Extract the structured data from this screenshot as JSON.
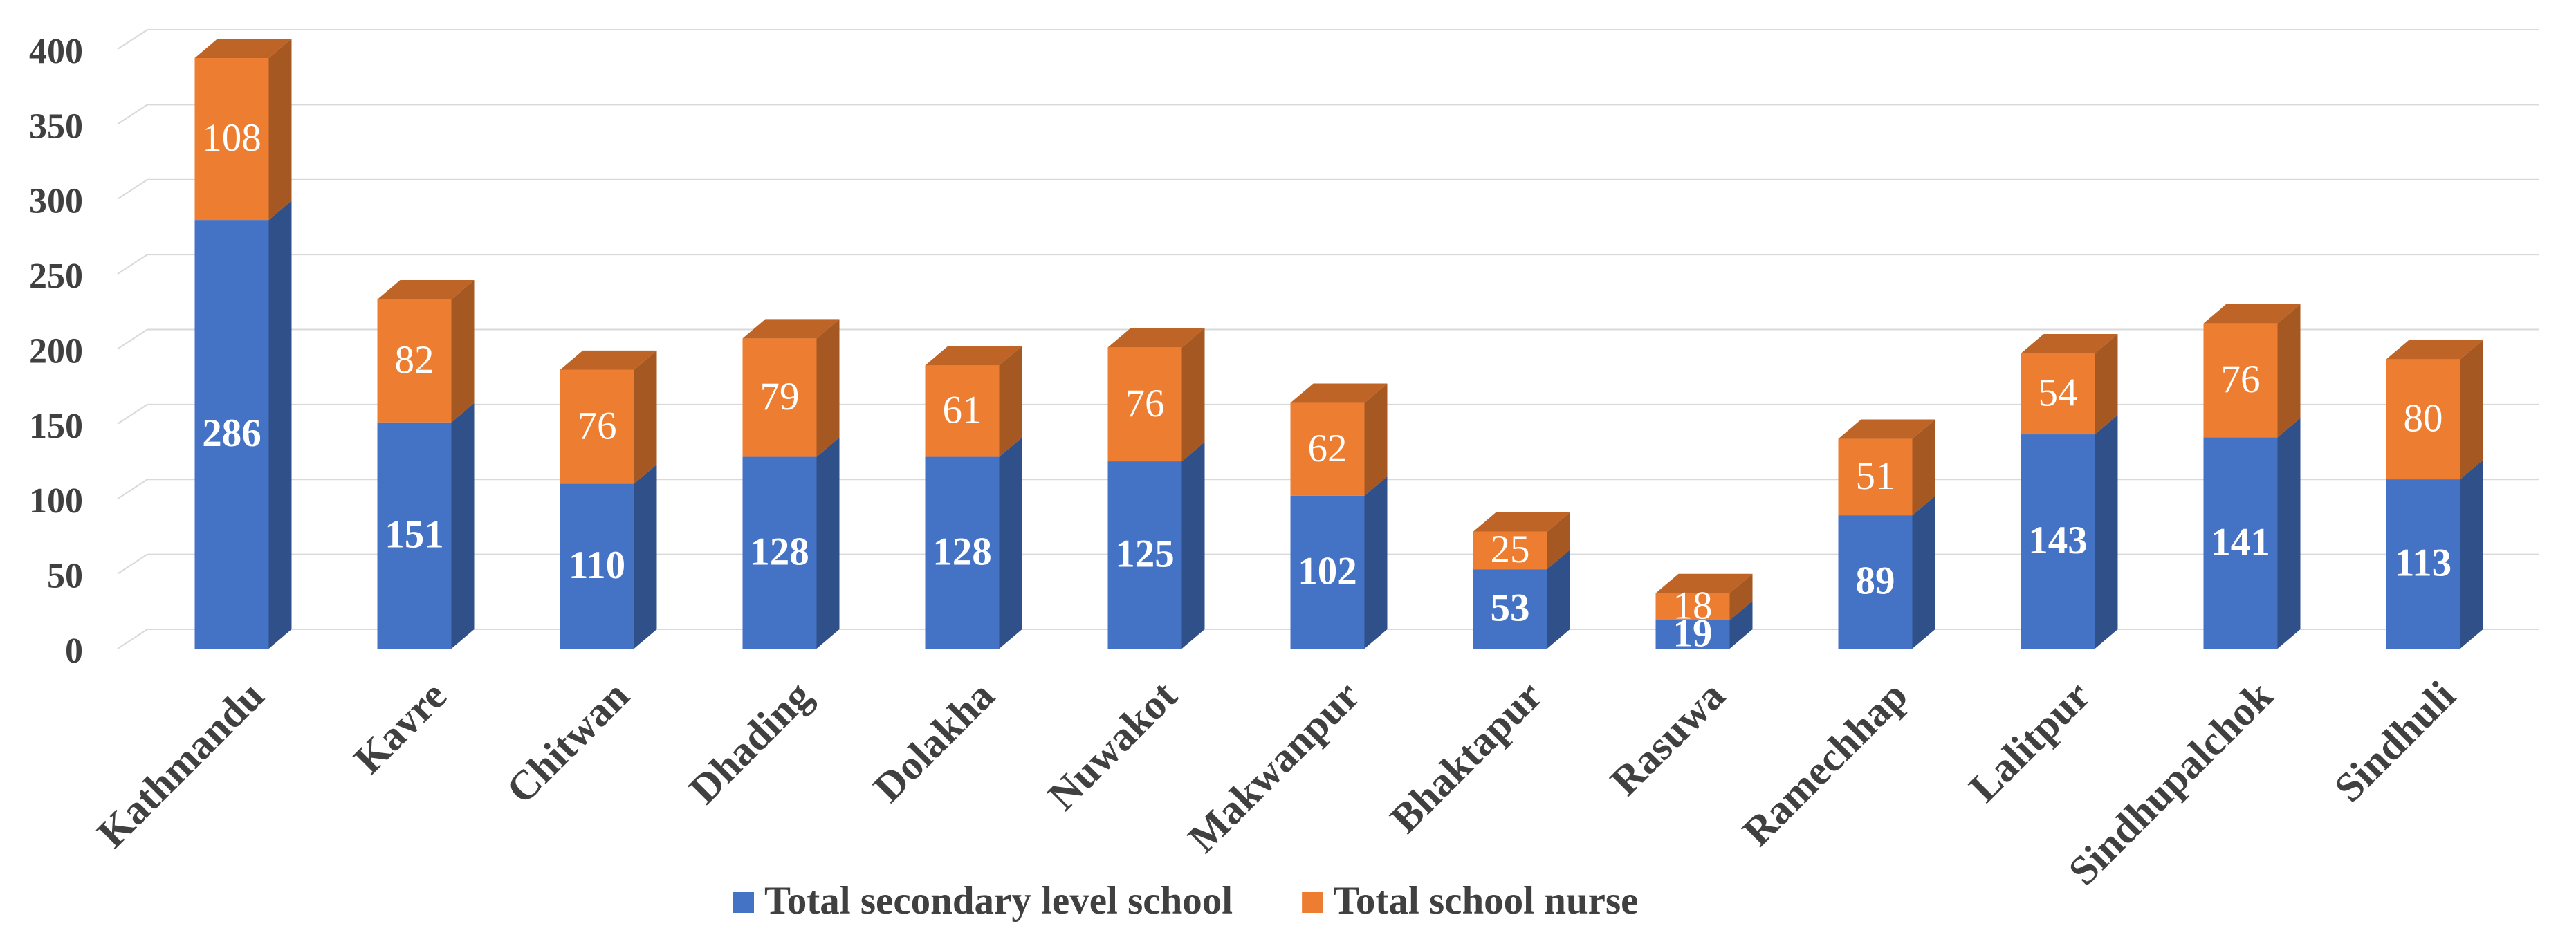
{
  "chart_data": {
    "type": "stacked-bar-3d",
    "categories": [
      "Kathmandu",
      "Kavre",
      "Chitwan",
      "Dhading",
      "Dolakha",
      "Nuwakot",
      "Makwanpur",
      "Bhaktapur",
      "Rasuwa",
      "Ramechhap",
      "Lalitpur",
      "Sindhupalchok",
      "Sindhuli"
    ],
    "series": [
      {
        "name": "Total secondary level school",
        "color": "#4472c4",
        "values": [
          286,
          151,
          110,
          128,
          128,
          125,
          102,
          53,
          19,
          89,
          143,
          141,
          113
        ]
      },
      {
        "name": "Total school nurse",
        "color": "#ed7d31",
        "values": [
          108,
          82,
          76,
          79,
          61,
          76,
          62,
          25,
          18,
          51,
          54,
          76,
          80
        ]
      }
    ],
    "ylim": [
      0,
      400
    ],
    "yticks": [
      0,
      50,
      100,
      150,
      200,
      250,
      300,
      350,
      400
    ],
    "grid": true,
    "legend": "bottom"
  }
}
